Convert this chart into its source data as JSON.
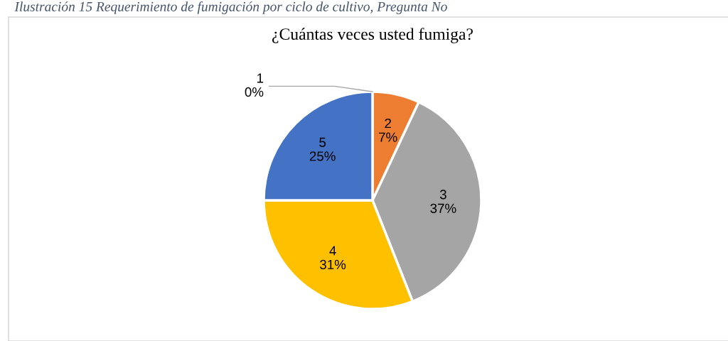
{
  "chart_data": {
    "type": "pie",
    "title": "¿Cuántas veces usted fumiga?",
    "annotations": [
      "Ilustración 15 Requerimiento de fumigación por ciclo de cultivo, Pregunta No"
    ],
    "categories": [
      "1",
      "2",
      "3",
      "4",
      "5"
    ],
    "values": [
      0,
      7,
      37,
      31,
      25
    ],
    "colors": [
      "#4472c4",
      "#ed7d31",
      "#a5a5a5",
      "#ffc000",
      "#4472c4"
    ],
    "value_labels": [
      "0%",
      "7%",
      "37%",
      "31%",
      "25%"
    ],
    "legend": false
  }
}
